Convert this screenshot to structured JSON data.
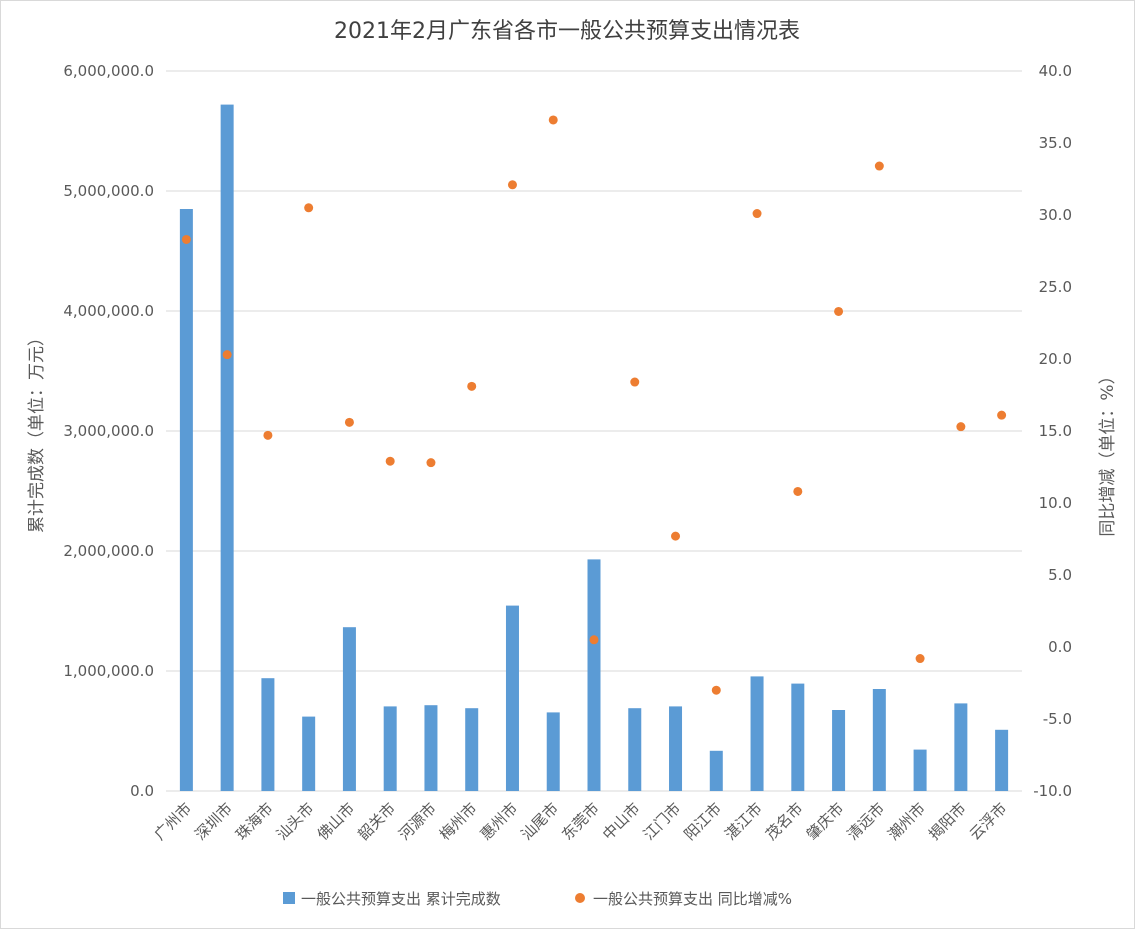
{
  "chart_data": {
    "type": "bar",
    "title": "2021年2月广东省各市一般公共预算支出情况表",
    "categories": [
      "广州市",
      "深圳市",
      "珠海市",
      "汕头市",
      "佛山市",
      "韶关市",
      "河源市",
      "梅州市",
      "惠州市",
      "汕尾市",
      "东莞市",
      "中山市",
      "江门市",
      "阳江市",
      "湛江市",
      "茂名市",
      "肇庆市",
      "清远市",
      "潮州市",
      "揭阳市",
      "云浮市"
    ],
    "series": [
      {
        "name": "一般公共预算支出 累计完成数",
        "type": "bar",
        "axis": "left",
        "color": "#5b9bd5",
        "values": [
          4850000,
          5720000,
          940000,
          620000,
          1365000,
          705000,
          715000,
          690000,
          1545000,
          655000,
          1930000,
          690000,
          705000,
          335000,
          955000,
          895000,
          675000,
          850000,
          345000,
          730000,
          510000
        ]
      },
      {
        "name": "一般公共预算支出 同比增减%",
        "type": "scatter",
        "axis": "right",
        "color": "#ed7d31",
        "values": [
          28.3,
          20.3,
          14.7,
          30.5,
          15.6,
          12.9,
          12.8,
          18.1,
          32.1,
          36.6,
          0.5,
          18.4,
          7.7,
          -3.0,
          30.1,
          10.8,
          23.3,
          33.4,
          -0.8,
          15.3,
          16.1
        ]
      }
    ],
    "y_left": {
      "label": "累计完成数（单位：万元）",
      "range": [
        0,
        6000000
      ],
      "ticks": [
        "0.0",
        "1,000,000.0",
        "2,000,000.0",
        "3,000,000.0",
        "4,000,000.0",
        "5,000,000.0",
        "6,000,000.0"
      ]
    },
    "y_right": {
      "label": "同比增减（单位：%）",
      "range": [
        -10,
        40
      ],
      "ticks": [
        "-10.0",
        "-5.0",
        "0.0",
        "5.0",
        "10.0",
        "15.0",
        "20.0",
        "25.0",
        "30.0",
        "35.0",
        "40.0"
      ]
    },
    "grid": true,
    "legend_position": "bottom"
  }
}
